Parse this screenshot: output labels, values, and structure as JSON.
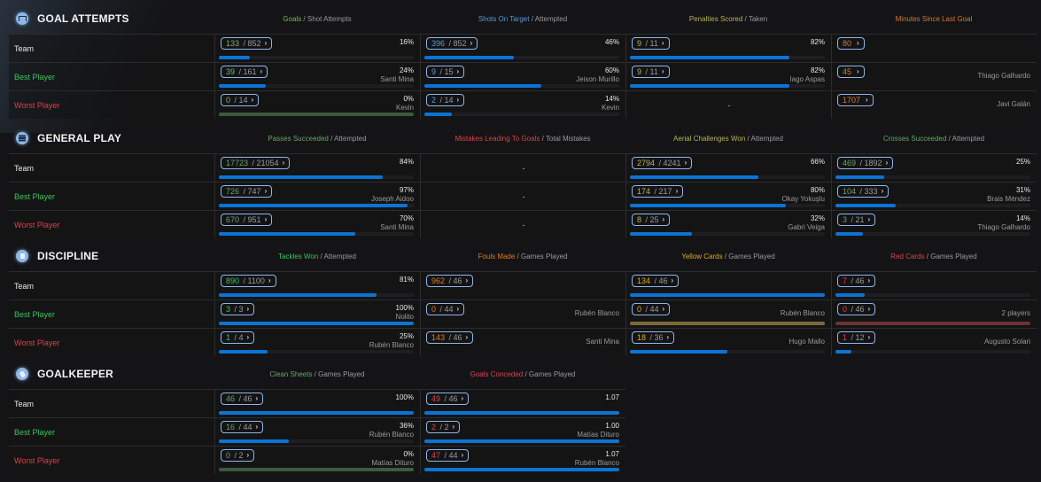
{
  "colors": {
    "goals": "#7bb36b",
    "shots": "#5b9bd5",
    "penalties": "#b7b35a",
    "minutes": "#d07a3a",
    "passes": "#6aa26a",
    "mistakes": "#d9434b",
    "aerial": "#b7b35a",
    "crosses": "#6aa26a",
    "tackles": "#3cc45a",
    "fouls": "#e07a1a",
    "yellow": "#e0a820",
    "red": "#d9434b",
    "clean": "#6aa26a",
    "conceded": "#d9434b",
    "bar_blue": "#0a74d6",
    "bar_green": "#3e5a3e",
    "bar_gold": "#7a6a3a",
    "bar_red": "#6a3232"
  },
  "row_labels": {
    "team": "Team",
    "best": "Best Player",
    "worst": "Worst Player"
  },
  "sections": [
    {
      "title": "GOAL ATTEMPTS",
      "icon": "goal-icon",
      "columns": [
        {
          "key": "Goals",
          "rest": " / Shot Attempts",
          "rows": [
            {
              "num": "133",
              "den": " / 852",
              "pct": "16%",
              "player": "",
              "fill": 16
            },
            {
              "num": "39",
              "den": " / 161",
              "pct": "24%",
              "player": "Santi Mina",
              "fill": 24
            },
            {
              "num": "0",
              "den": " / 14",
              "pct": "0%",
              "player": "Kevin",
              "fill": 0
            }
          ]
        },
        {
          "key": "Shots On Target",
          "rest": " / Attempted",
          "rows": [
            {
              "num": "396",
              "den": " / 852",
              "pct": "46%",
              "player": "",
              "fill": 46
            },
            {
              "num": "9",
              "den": " / 15",
              "pct": "60%",
              "player": "Jeison Murillo",
              "fill": 60
            },
            {
              "num": "2",
              "den": " / 14",
              "pct": "14%",
              "player": "Kevin",
              "fill": 14
            }
          ]
        },
        {
          "key": "Penalties Scored",
          "rest": " / Taken",
          "rows": [
            {
              "num": "9",
              "den": " / 11",
              "pct": "82%",
              "player": "",
              "fill": 82
            },
            {
              "num": "9",
              "den": " / 11",
              "pct": "82%",
              "player": "Iago Aspas",
              "fill": 82
            },
            {
              "dash": "-"
            }
          ]
        },
        {
          "key": "Minutes Since Last Goal",
          "rest": "",
          "rows": [
            {
              "num": "80",
              "den": "",
              "pct": "",
              "player": ""
            },
            {
              "num": "45",
              "den": "",
              "pct": "",
              "player": "Thiago Galhardo"
            },
            {
              "num": "1707",
              "den": "",
              "pct": "",
              "player": "Javi Galán"
            }
          ]
        }
      ]
    },
    {
      "title": "GENERAL PLAY",
      "icon": "general-play-icon",
      "columns": [
        {
          "key": "Passes Succeeded",
          "rest": " / Attempted",
          "rows": [
            {
              "num": "17723",
              "den": " / 21054",
              "pct": "84%",
              "player": "",
              "fill": 84
            },
            {
              "num": "726",
              "den": " / 747",
              "pct": "97%",
              "player": "Joseph Aidoo",
              "fill": 97
            },
            {
              "num": "670",
              "den": " / 951",
              "pct": "70%",
              "player": "Santi Mina",
              "fill": 70
            }
          ]
        },
        {
          "key": "Mistakes Leading To Goals",
          "rest": " / Total Mistakes",
          "rows": [
            {
              "dash": "-"
            },
            {
              "dash": "-"
            },
            {
              "dash": "-"
            }
          ]
        },
        {
          "key": "Aerial Challenges Won",
          "rest": " / Attempted",
          "rows": [
            {
              "num": "2794",
              "den": " / 4241",
              "pct": "66%",
              "player": "",
              "fill": 66
            },
            {
              "num": "174",
              "den": " / 217",
              "pct": "80%",
              "player": "Okay Yokuşlu",
              "fill": 80
            },
            {
              "num": "8",
              "den": " / 25",
              "pct": "32%",
              "player": "Gabri Veiga",
              "fill": 32
            }
          ]
        },
        {
          "key": "Crosses Succeeded",
          "rest": " / Attempted",
          "rows": [
            {
              "num": "469",
              "den": " / 1892",
              "pct": "25%",
              "player": "",
              "fill": 25
            },
            {
              "num": "104",
              "den": " / 333",
              "pct": "31%",
              "player": "Brais Méndez",
              "fill": 31
            },
            {
              "num": "3",
              "den": " / 21",
              "pct": "14%",
              "player": "Thiago Galhardo",
              "fill": 14
            }
          ]
        }
      ]
    },
    {
      "title": "DISCIPLINE",
      "icon": "discipline-icon",
      "columns": [
        {
          "key": "Tackles Won",
          "rest": " / Attempted",
          "rows": [
            {
              "num": "890",
              "den": " / 1100",
              "pct": "81%",
              "player": "",
              "fill": 81
            },
            {
              "num": "3",
              "den": " / 3",
              "pct": "100%",
              "player": "Nolito",
              "fill": 100
            },
            {
              "num": "1",
              "den": " / 4",
              "pct": "25%",
              "player": "Rubén Blanco",
              "fill": 25
            }
          ]
        },
        {
          "key": "Fouls Made",
          "rest": " / Games Played",
          "rows": [
            {
              "num": "962",
              "den": " / 46",
              "pct": "",
              "player": ""
            },
            {
              "num": "0",
              "den": " / 44",
              "pct": "",
              "player": "Rubén Blanco"
            },
            {
              "num": "143",
              "den": " / 46",
              "pct": "",
              "player": "Santi Mina"
            }
          ]
        },
        {
          "key": "Yellow Cards",
          "rest": " / Games Played",
          "rows": [
            {
              "num": "134",
              "den": " / 46",
              "pct": "",
              "player": "",
              "fill": 100
            },
            {
              "num": "0",
              "den": " / 44",
              "pct": "",
              "player": "Rubén Blanco",
              "fill": 100,
              "bar": "gold"
            },
            {
              "num": "18",
              "den": " / 36",
              "pct": "",
              "player": "Hugo Mallo",
              "fill": 50
            }
          ]
        },
        {
          "key": "Red Cards",
          "rest": " / Games Played",
          "rows": [
            {
              "num": "7",
              "den": " / 46",
              "pct": "",
              "player": "",
              "fill": 15
            },
            {
              "num": "0",
              "den": " / 46",
              "pct": "",
              "player": "2 players",
              "fill": 100,
              "bar": "red"
            },
            {
              "num": "1",
              "den": " / 12",
              "pct": "",
              "player": "Augusto Solari",
              "fill": 8
            }
          ]
        }
      ]
    },
    {
      "title": "GOALKEEPER",
      "icon": "goalkeeper-icon",
      "columns": [
        {
          "key": "Clean Sheets",
          "rest": " / Games Played",
          "rows": [
            {
              "num": "46",
              "den": " / 46",
              "pct": "100%",
              "player": "",
              "fill": 100
            },
            {
              "num": "16",
              "den": " / 44",
              "pct": "36%",
              "player": "Rubén Blanco",
              "fill": 36
            },
            {
              "num": "0",
              "den": " / 2",
              "pct": "0%",
              "player": "Matías Dituro",
              "fill": 0
            }
          ]
        },
        {
          "key": "Goals Conceded",
          "rest": " / Games Played",
          "rows": [
            {
              "num": "49",
              "den": " / 46",
              "pct": "1.07",
              "player": "",
              "fill": 100
            },
            {
              "num": "2",
              "den": " / 2",
              "pct": "1.00",
              "player": "Matías Dituro",
              "fill": 100
            },
            {
              "num": "47",
              "den": " / 44",
              "pct": "1.07",
              "player": "Rubén Blanco",
              "fill": 100
            }
          ]
        }
      ]
    }
  ]
}
